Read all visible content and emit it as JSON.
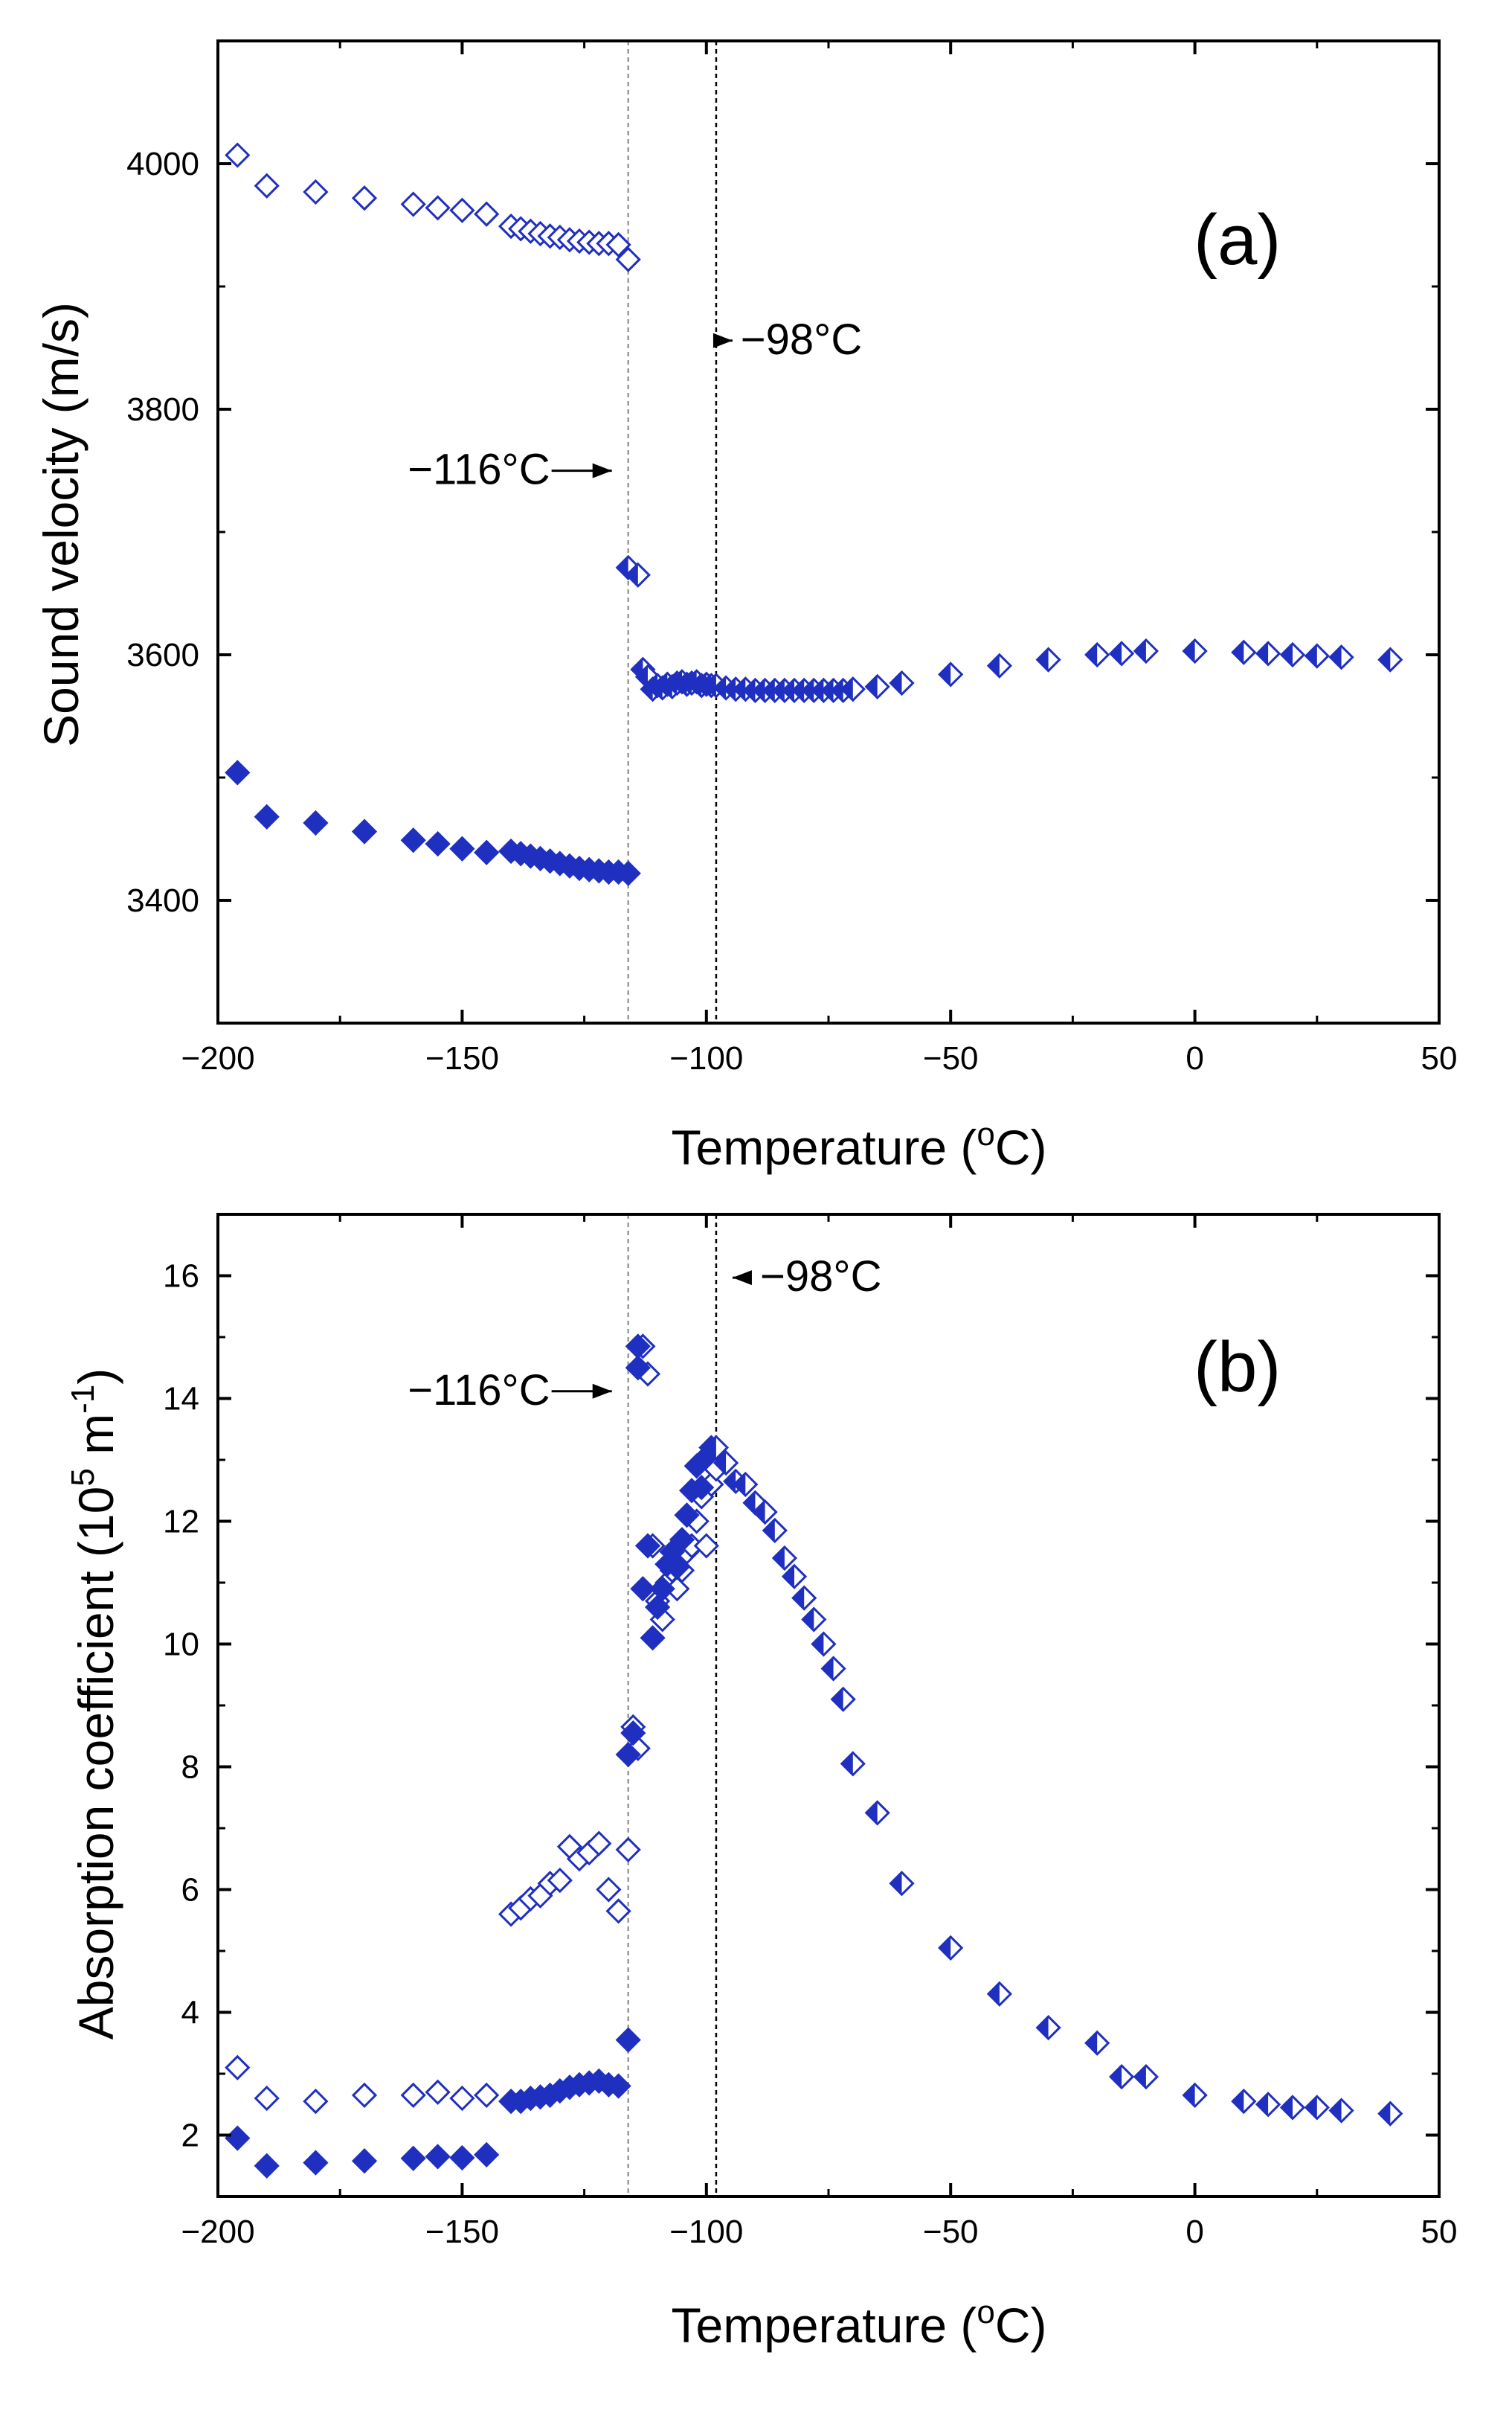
{
  "chart_data": [
    {
      "panel_label": "(a)",
      "type": "scatter",
      "xlabel": "Temperature (",
      "xlabel_sup": "o",
      "xlabel_tail": "C)",
      "ylabel": "Sound velocity (m/s)",
      "xlim": [
        -200,
        50
      ],
      "ylim": [
        3300,
        4100
      ],
      "xticks": [
        -200,
        -150,
        -100,
        -50,
        0,
        50
      ],
      "xtick_labels": [
        "−200",
        "−150",
        "−100",
        "−50",
        "0",
        "50"
      ],
      "yticks": [
        3400,
        3600,
        3800,
        4000
      ],
      "ytick_labels": [
        "3400",
        "3600",
        "3800",
        "4000"
      ],
      "vlines": [
        -116,
        -98
      ],
      "annotations": [
        {
          "text": "−116°C",
          "x": -132,
          "y": 3739,
          "arrow": "right"
        },
        {
          "text": "−98°C",
          "x": -93,
          "y": 3845,
          "arrow": "left"
        }
      ],
      "series": [
        {
          "marker": "diamond-open",
          "x": [
            -196,
            -190,
            -180,
            -170,
            -160,
            -155,
            -150,
            -145,
            -140,
            -138,
            -136,
            -134,
            -132,
            -130,
            -128,
            -126,
            -124,
            -122,
            -120,
            -118,
            -116
          ],
          "y": [
            4007,
            3982,
            3977,
            3972,
            3967,
            3964,
            3962,
            3959,
            3949,
            3947,
            3945,
            3943,
            3941,
            3940,
            3938,
            3937,
            3936,
            3935,
            3935,
            3934,
            3922
          ]
        },
        {
          "marker": "diamond-filled",
          "x": [
            -196,
            -190,
            -180,
            -170,
            -160,
            -155,
            -150,
            -145,
            -140,
            -138,
            -136,
            -134,
            -132,
            -130,
            -128,
            -126,
            -124,
            -122,
            -120,
            -118,
            -116
          ],
          "y": [
            3504,
            3468,
            3463,
            3456,
            3449,
            3446,
            3442,
            3439,
            3440,
            3438,
            3436,
            3434,
            3432,
            3430,
            3428,
            3426,
            3425,
            3424,
            3423,
            3423,
            3422
          ]
        },
        {
          "marker": "diamond-half",
          "x": [
            -116,
            -114,
            -113,
            -112,
            -111,
            -110,
            -109,
            -108,
            -107,
            -106,
            -105,
            -104,
            -103,
            -102,
            -101,
            -100,
            -99,
            -98,
            -96,
            -94,
            -92,
            -90,
            -88,
            -86,
            -84,
            -82,
            -80,
            -78,
            -76,
            -74,
            -72,
            -70,
            -65,
            -60,
            -50,
            -40,
            -30,
            -20,
            -15,
            -10,
            0,
            10,
            15,
            20,
            25,
            30,
            40
          ],
          "y": [
            3671,
            3665,
            3588,
            3582,
            3572,
            3575,
            3573,
            3576,
            3574,
            3577,
            3578,
            3576,
            3577,
            3578,
            3575,
            3576,
            3575,
            3575,
            3573,
            3572,
            3572,
            3571,
            3571,
            3571,
            3571,
            3571,
            3571,
            3571,
            3571,
            3571,
            3571,
            3572,
            3574,
            3577,
            3584,
            3591,
            3596,
            3600,
            3601,
            3603,
            3603,
            3602,
            3601,
            3600,
            3599,
            3598,
            3596
          ]
        }
      ]
    },
    {
      "panel_label": "(b)",
      "type": "scatter",
      "xlabel": "Temperature (",
      "xlabel_sup": "o",
      "xlabel_tail": "C)",
      "ylabel": "Absorption coefficient (10",
      "ylabel_sup": "5",
      "ylabel_mid": " m",
      "ylabel_sup2": "-1",
      "ylabel_tail": ")",
      "xlim": [
        -200,
        50
      ],
      "ylim": [
        1,
        17
      ],
      "xticks": [
        -200,
        -150,
        -100,
        -50,
        0,
        50
      ],
      "xtick_labels": [
        "−200",
        "−150",
        "−100",
        "−50",
        "0",
        "50"
      ],
      "yticks": [
        2,
        4,
        6,
        8,
        10,
        12,
        14,
        16
      ],
      "ytick_labels": [
        "2",
        "4",
        "6",
        "8",
        "10",
        "12",
        "14",
        "16"
      ],
      "vlines": [
        -116,
        -98
      ],
      "annotations": [
        {
          "text": "−116°C",
          "x": -132,
          "y": 13.9,
          "arrow": "right"
        },
        {
          "text": "−98°C",
          "x": -89,
          "y": 15.75,
          "arrow": "left"
        }
      ],
      "series": [
        {
          "marker": "diamond-open",
          "x": [
            -196,
            -190,
            -180,
            -170,
            -160,
            -155,
            -150,
            -145,
            -140,
            -138,
            -136,
            -134,
            -132,
            -130,
            -128,
            -126,
            -124,
            -122,
            -120,
            -118,
            -116,
            -115,
            -114,
            -113,
            -112,
            -111,
            -110,
            -109,
            -108,
            -107,
            -106,
            -105,
            -104,
            -103,
            -102,
            -101,
            -100,
            -99,
            -98
          ],
          "y": [
            3.1,
            2.6,
            2.55,
            2.65,
            2.65,
            2.7,
            2.6,
            2.65,
            5.6,
            5.7,
            5.85,
            5.9,
            6.1,
            6.15,
            6.7,
            6.5,
            6.6,
            6.75,
            6.0,
            5.65,
            6.65,
            8.65,
            8.3,
            14.85,
            14.4,
            11.6,
            10.7,
            10.4,
            11.0,
            11.2,
            10.9,
            11.2,
            11.5,
            11.6,
            12.0,
            12.4,
            11.6,
            12.6,
            12.85
          ]
        },
        {
          "marker": "diamond-filled",
          "x": [
            -196,
            -190,
            -180,
            -170,
            -160,
            -155,
            -150,
            -145,
            -140,
            -138,
            -136,
            -134,
            -132,
            -130,
            -128,
            -126,
            -124,
            -122,
            -120,
            -118,
            -116,
            -116,
            -115,
            -114,
            -114,
            -113,
            -112,
            -111,
            -110,
            -109,
            -108,
            -107,
            -106,
            -105,
            -104,
            -103,
            -102,
            -101,
            -100,
            -99
          ],
          "y": [
            1.95,
            1.5,
            1.55,
            1.58,
            1.62,
            1.65,
            1.63,
            1.68,
            2.55,
            2.55,
            2.6,
            2.62,
            2.65,
            2.72,
            2.78,
            2.82,
            2.85,
            2.88,
            2.82,
            2.8,
            3.55,
            8.2,
            8.55,
            14.5,
            14.85,
            10.9,
            11.6,
            10.1,
            10.6,
            10.9,
            11.3,
            11.5,
            11.25,
            11.7,
            12.1,
            12.5,
            12.9,
            12.55,
            13.05,
            13.2
          ]
        },
        {
          "marker": "diamond-half",
          "x": [
            -98,
            -96,
            -94,
            -92,
            -90,
            -88,
            -86,
            -84,
            -82,
            -80,
            -78,
            -76,
            -74,
            -72,
            -70,
            -65,
            -60,
            -50,
            -40,
            -30,
            -20,
            -15,
            -10,
            0,
            10,
            15,
            20,
            25,
            30,
            40
          ],
          "y": [
            13.2,
            12.95,
            12.65,
            12.6,
            12.3,
            12.15,
            11.85,
            11.4,
            11.1,
            10.75,
            10.4,
            10.0,
            9.6,
            9.1,
            8.05,
            7.25,
            6.1,
            5.05,
            4.3,
            3.75,
            3.5,
            2.95,
            2.95,
            2.65,
            2.55,
            2.5,
            2.45,
            2.45,
            2.4,
            2.35
          ]
        }
      ]
    }
  ],
  "style": {
    "marker_color": "#1f2fbf",
    "axis_color": "#000000",
    "vline_color_1": "#9a9a9a",
    "vline_color_2": "#000000"
  }
}
